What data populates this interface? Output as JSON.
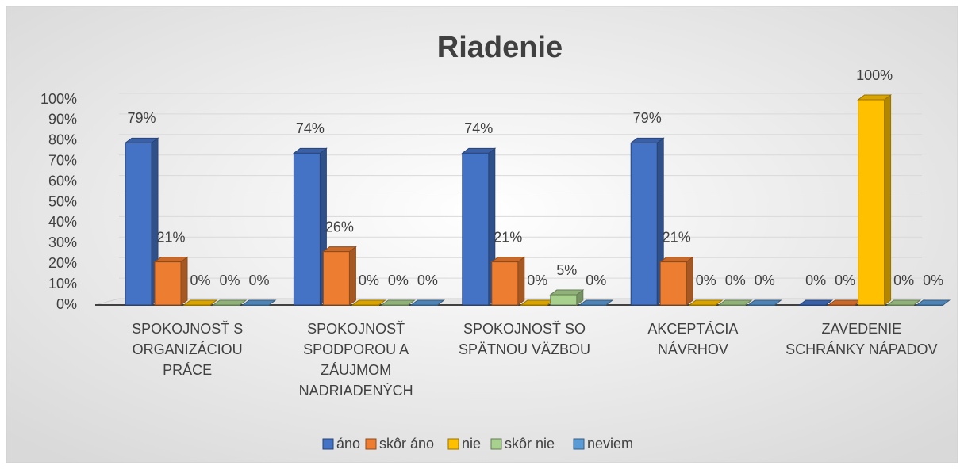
{
  "chart_data": {
    "type": "bar",
    "title": "Riadenie",
    "categories": [
      "SPOKOJNOSŤ S ORGANIZÁCIOU PRÁCE",
      "SPOKOJNOSŤ SPODPOROU A ZÁUJMOM NADRIADENÝCH",
      "SPOKOJNOSŤ SO SPÄTNOU VÄZBOU",
      "AKCEPTÁCIA NÁVRHOV",
      "ZAVEDENIE SCHRÁNKY NÁPADOV"
    ],
    "series": [
      {
        "name": "áno",
        "color": "#4472c4",
        "values": [
          79,
          74,
          74,
          79,
          0
        ],
        "value_labels": [
          "79%",
          "74%",
          "74%",
          "79%",
          "0%"
        ]
      },
      {
        "name": "skôr áno",
        "color": "#ed7d31",
        "values": [
          21,
          26,
          21,
          21,
          0
        ],
        "value_labels": [
          "21%",
          "26%",
          "21%",
          "21%",
          "0%"
        ]
      },
      {
        "name": "nie",
        "color": "#ffc000",
        "values": [
          0,
          0,
          0,
          0,
          100
        ],
        "value_labels": [
          "0%",
          "0%",
          "0%",
          "0%",
          "100%"
        ]
      },
      {
        "name": "skôr nie",
        "color": "#a9d18e",
        "values": [
          0,
          0,
          5,
          0,
          0
        ],
        "value_labels": [
          "0%",
          "0%",
          "5%",
          "0%",
          "0%"
        ]
      },
      {
        "name": "neviem",
        "color": "#5b9bd5",
        "values": [
          0,
          0,
          0,
          0,
          0
        ],
        "value_labels": [
          "0%",
          "0%",
          "0%",
          "0%",
          "0%"
        ]
      }
    ],
    "ylim": [
      0,
      100
    ],
    "yticks": [
      {
        "value": 0,
        "label": "0%"
      },
      {
        "value": 10,
        "label": "10%"
      },
      {
        "value": 20,
        "label": "20%"
      },
      {
        "value": 30,
        "label": "30%"
      },
      {
        "value": 40,
        "label": "40%"
      },
      {
        "value": 50,
        "label": "50%"
      },
      {
        "value": 60,
        "label": "60%"
      },
      {
        "value": 70,
        "label": "70%"
      },
      {
        "value": 80,
        "label": "80%"
      },
      {
        "value": 90,
        "label": "90%"
      },
      {
        "value": 100,
        "label": "100%"
      }
    ],
    "grid": true,
    "legend": "bottom"
  }
}
